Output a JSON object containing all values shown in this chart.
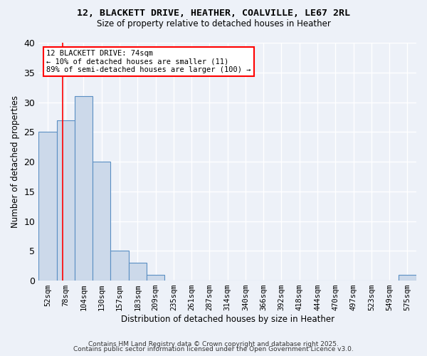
{
  "title1": "12, BLACKETT DRIVE, HEATHER, COALVILLE, LE67 2RL",
  "title2": "Size of property relative to detached houses in Heather",
  "xlabel": "Distribution of detached houses by size in Heather",
  "ylabel": "Number of detached properties",
  "categories": [
    "52sqm",
    "78sqm",
    "104sqm",
    "130sqm",
    "157sqm",
    "183sqm",
    "209sqm",
    "235sqm",
    "261sqm",
    "287sqm",
    "314sqm",
    "340sqm",
    "366sqm",
    "392sqm",
    "418sqm",
    "444sqm",
    "470sqm",
    "497sqm",
    "523sqm",
    "549sqm",
    "575sqm"
  ],
  "values": [
    25,
    27,
    31,
    20,
    5,
    3,
    1,
    0,
    0,
    0,
    0,
    0,
    0,
    0,
    0,
    0,
    0,
    0,
    0,
    0,
    1
  ],
  "bar_color": "#ccd9ea",
  "bar_edge_color": "#5a8fc3",
  "bar_width": 1.0,
  "annotation_text": "12 BLACKETT DRIVE: 74sqm\n← 10% of detached houses are smaller (11)\n89% of semi-detached houses are larger (100) →",
  "annotation_box_color": "white",
  "annotation_box_edge": "red",
  "ylim": [
    0,
    40
  ],
  "yticks": [
    0,
    5,
    10,
    15,
    20,
    25,
    30,
    35,
    40
  ],
  "background_color": "#edf1f8",
  "grid_color": "white",
  "footer1": "Contains HM Land Registry data © Crown copyright and database right 2025.",
  "footer2": "Contains public sector information licensed under the Open Government Licence v3.0."
}
